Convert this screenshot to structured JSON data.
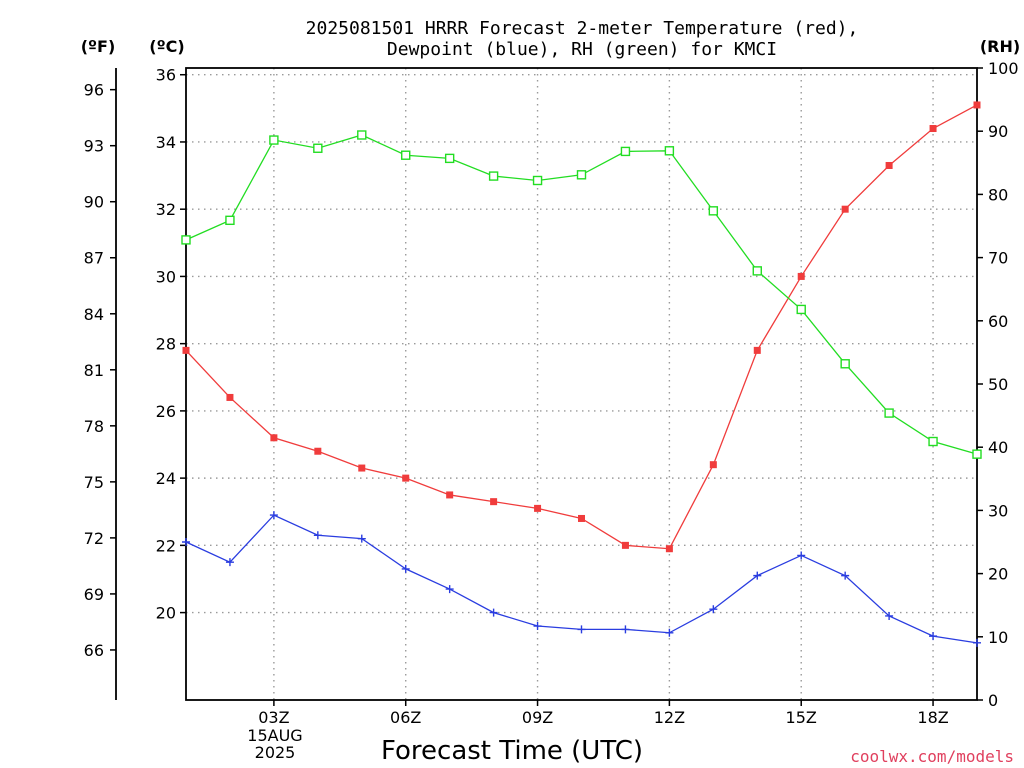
{
  "chart_data": {
    "type": "line",
    "title_line1": "2025081501 HRRR Forecast 2-meter Temperature (red),",
    "title_line2": "Dewpoint (blue), RH (green) for KMCI",
    "xlabel": "Forecast Time (UTC)",
    "unit_f": "(ºF)",
    "unit_c": "(ºC)",
    "unit_rh": "(RH)",
    "date_label_day": "15AUG",
    "date_label_year": "2025",
    "watermark": "coolwx.com/models",
    "x_hours": [
      1,
      2,
      3,
      4,
      5,
      6,
      7,
      8,
      9,
      10,
      11,
      12,
      13,
      14,
      15,
      16,
      17,
      18,
      19
    ],
    "xlim": [
      1,
      19
    ],
    "x_tick_hours": [
      3,
      6,
      9,
      12,
      15,
      18
    ],
    "x_tick_labels": [
      "03Z",
      "06Z",
      "09Z",
      "12Z",
      "15Z",
      "18Z"
    ],
    "celsius_ylim": [
      17.4,
      36.2
    ],
    "celsius_ticks": [
      20,
      22,
      24,
      26,
      28,
      30,
      32,
      34,
      36
    ],
    "fahrenheit_ticks": [
      66,
      69,
      72,
      75,
      78,
      81,
      84,
      87,
      90,
      93,
      96
    ],
    "rh_ylim": [
      0,
      100
    ],
    "rh_ticks": [
      0,
      10,
      20,
      30,
      40,
      50,
      60,
      70,
      80,
      90,
      100
    ],
    "grid": true,
    "series": [
      {
        "name": "Temperature (red)",
        "axis": "celsius",
        "color": "#f03c3c",
        "marker": "filled-square",
        "values": [
          27.8,
          26.4,
          25.2,
          24.8,
          24.3,
          24.0,
          23.5,
          23.3,
          23.1,
          22.8,
          22.0,
          21.9,
          24.4,
          27.8,
          30.0,
          32.0,
          33.3,
          34.4,
          35.1
        ]
      },
      {
        "name": "Dewpoint (blue)",
        "axis": "celsius",
        "color": "#2a3de0",
        "marker": "plus",
        "values": [
          22.1,
          21.5,
          22.9,
          22.3,
          22.2,
          21.3,
          20.7,
          20.0,
          19.6,
          19.5,
          19.5,
          19.4,
          20.1,
          21.1,
          21.7,
          21.1,
          19.9,
          19.3,
          19.1
        ]
      },
      {
        "name": "RH (green)",
        "axis": "rh",
        "color": "#22dd22",
        "marker": "open-square",
        "values": [
          72.8,
          75.9,
          88.6,
          87.3,
          89.4,
          86.2,
          85.7,
          82.9,
          82.2,
          83.1,
          86.8,
          86.9,
          77.4,
          67.9,
          61.8,
          53.2,
          45.4,
          40.9,
          38.9
        ]
      }
    ]
  }
}
